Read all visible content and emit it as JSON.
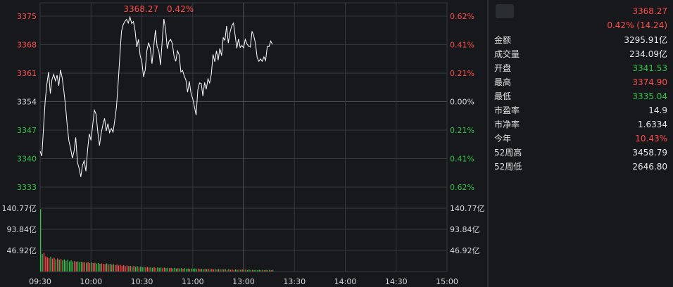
{
  "chart_data": {
    "type": "line",
    "title": "",
    "header": {
      "price": "3368.27",
      "change_pct": "0.42%"
    },
    "price_axis": {
      "ticks": [
        "3375",
        "3368",
        "3361",
        "3354",
        "3347",
        "3340",
        "3333"
      ],
      "pct_ticks": [
        "0.62%",
        "0.41%",
        "0.21%",
        "0.00%",
        "0.21%",
        "0.41%",
        "0.62%"
      ],
      "ylim": [
        3333,
        3375
      ],
      "base": 3354
    },
    "volume_axis": {
      "ticks": [
        "140.77亿",
        "93.84亿",
        "46.92亿"
      ],
      "ylim": [
        0,
        187.7
      ]
    },
    "x_ticks": [
      "09:30",
      "10:00",
      "10:30",
      "11:00",
      "13:00",
      "13:30",
      "14:00",
      "14:30",
      "15:00"
    ],
    "price_series": [
      [
        0,
        3341.8
      ],
      [
        1,
        3340.6
      ],
      [
        2,
        3347.5
      ],
      [
        3,
        3354.2
      ],
      [
        4,
        3358.3
      ],
      [
        5,
        3361.3
      ],
      [
        6,
        3356
      ],
      [
        7,
        3359.5
      ],
      [
        8,
        3360.7
      ],
      [
        9,
        3359.1
      ],
      [
        10,
        3360.5
      ],
      [
        11,
        3357.9
      ],
      [
        12,
        3361.8
      ],
      [
        13,
        3359.9
      ],
      [
        14,
        3356.7
      ],
      [
        15,
        3352.9
      ],
      [
        16,
        3348.1
      ],
      [
        17,
        3344.3
      ],
      [
        18,
        3342.5
      ],
      [
        19,
        3340.1
      ],
      [
        20,
        3341.8
      ],
      [
        21,
        3345.2
      ],
      [
        22,
        3339.1
      ],
      [
        23,
        3337.6
      ],
      [
        24,
        3335.5
      ],
      [
        25,
        3338.4
      ],
      [
        26,
        3339.5
      ],
      [
        27,
        3336.9
      ],
      [
        28,
        3342.1
      ],
      [
        29,
        3346.1
      ],
      [
        30,
        3344.5
      ],
      [
        31,
        3348.3
      ],
      [
        32,
        3351.9
      ],
      [
        33,
        3350.9
      ],
      [
        34,
        3346.6
      ],
      [
        35,
        3343.2
      ],
      [
        36,
        3346.2
      ],
      [
        37,
        3348.3
      ],
      [
        38,
        3349.9
      ],
      [
        39,
        3346.8
      ],
      [
        40,
        3348.6
      ],
      [
        41,
        3346.4
      ],
      [
        42,
        3347.4
      ],
      [
        43,
        3346.5
      ],
      [
        44,
        3349.4
      ],
      [
        45,
        3352.6
      ],
      [
        46,
        3358.5
      ],
      [
        47,
        3365.1
      ],
      [
        48,
        3371.3
      ],
      [
        49,
        3372.9
      ],
      [
        50,
        3373.7
      ],
      [
        51,
        3374.2
      ],
      [
        52,
        3373.3
      ],
      [
        53,
        3374.8
      ],
      [
        54,
        3373.2
      ],
      [
        55,
        3373.7
      ],
      [
        56,
        3371.4
      ],
      [
        57,
        3367.4
      ],
      [
        58,
        3369.3
      ],
      [
        59,
        3365.3
      ],
      [
        60,
        3363.8
      ],
      [
        61,
        3360.1
      ],
      [
        62,
        3361.8
      ],
      [
        63,
        3366.6
      ],
      [
        64,
        3368.5
      ],
      [
        65,
        3367.1
      ],
      [
        66,
        3363.3
      ],
      [
        67,
        3367.6
      ],
      [
        68,
        3371.6
      ],
      [
        69,
        3367.5
      ],
      [
        70,
        3366.5
      ],
      [
        71,
        3363
      ],
      [
        72,
        3368.9
      ],
      [
        73,
        3374.3
      ],
      [
        74,
        3371.8
      ],
      [
        75,
        3367
      ],
      [
        76,
        3368.8
      ],
      [
        77,
        3369.3
      ],
      [
        78,
        3368.3
      ],
      [
        79,
        3365.1
      ],
      [
        80,
        3363.9
      ],
      [
        81,
        3366.5
      ],
      [
        82,
        3365.5
      ],
      [
        83,
        3361.3
      ],
      [
        84,
        3361.7
      ],
      [
        85,
        3360.3
      ],
      [
        86,
        3359.3
      ],
      [
        87,
        3356.3
      ],
      [
        88,
        3359
      ],
      [
        89,
        3356.1
      ],
      [
        90,
        3354.7
      ],
      [
        91,
        3352.7
      ],
      [
        92,
        3350.7
      ],
      [
        93,
        3356.9
      ],
      [
        94,
        3358.6
      ],
      [
        95,
        3358.5
      ],
      [
        96,
        3355.4
      ],
      [
        97,
        3358.7
      ],
      [
        98,
        3357
      ],
      [
        99,
        3359.6
      ],
      [
        100,
        3358.6
      ],
      [
        101,
        3360.8
      ],
      [
        102,
        3365.6
      ],
      [
        103,
        3363.8
      ],
      [
        104,
        3366.5
      ],
      [
        105,
        3364.2
      ],
      [
        106,
        3367.1
      ],
      [
        107,
        3365.3
      ],
      [
        108,
        3369.7
      ],
      [
        109,
        3369.1
      ],
      [
        110,
        3372.6
      ],
      [
        111,
        3368.4
      ],
      [
        112,
        3371
      ],
      [
        113,
        3372.6
      ],
      [
        114,
        3373.3
      ],
      [
        115,
        3370.3
      ],
      [
        116,
        3367.1
      ],
      [
        117,
        3369.4
      ],
      [
        118,
        3367.3
      ],
      [
        119,
        3367.8
      ],
      [
        120,
        3367.2
      ],
      [
        121,
        3369.3
      ],
      [
        122,
        3368.2
      ],
      [
        123,
        3367.6
      ],
      [
        124,
        3367.4
      ],
      [
        125,
        3371.3
      ],
      [
        126,
        3370.2
      ],
      [
        127,
        3368.3
      ],
      [
        128,
        3364.8
      ],
      [
        129,
        3363.9
      ],
      [
        130,
        3364.5
      ],
      [
        131,
        3363.9
      ],
      [
        132,
        3365
      ],
      [
        133,
        3364.1
      ],
      [
        134,
        3367.6
      ],
      [
        135,
        3367.5
      ],
      [
        136,
        3368.9
      ],
      [
        137,
        3368.1
      ]
    ],
    "volume_values": [
      185,
      52,
      55,
      45,
      42,
      40,
      44,
      38,
      41,
      36,
      39,
      35,
      37,
      33,
      36,
      32,
      35,
      30,
      33,
      30,
      31,
      29,
      30,
      28,
      29,
      27,
      28,
      26,
      28,
      25,
      27,
      25,
      26,
      24,
      25,
      23,
      24,
      23,
      22,
      24,
      21,
      23,
      20,
      22,
      19,
      21,
      18,
      20,
      17,
      19,
      16,
      18,
      16,
      17,
      15,
      17,
      14,
      16,
      13,
      15,
      13,
      14,
      12,
      14,
      12,
      13,
      11,
      13,
      11,
      12,
      11,
      12,
      10,
      12,
      10,
      11,
      10,
      11,
      9,
      11,
      9,
      10,
      9,
      10,
      8,
      10,
      8,
      9,
      8,
      9,
      8,
      9,
      7,
      9,
      7,
      8,
      7,
      8,
      7,
      8,
      6,
      8,
      6,
      7,
      6,
      7,
      6,
      7,
      6,
      7,
      5,
      7,
      5,
      6,
      5,
      6,
      5,
      6,
      5,
      6,
      5,
      6,
      4,
      6,
      4,
      5,
      4,
      5,
      4,
      5,
      4,
      5,
      4,
      5,
      4,
      5,
      4,
      5
    ]
  },
  "panel": {
    "price": "3368.27",
    "change": "0.42% (14.24)",
    "rows": [
      {
        "label": "金额",
        "value": "3295.91亿",
        "color": "white"
      },
      {
        "label": "成交量",
        "value": "234.09亿",
        "color": "white"
      },
      {
        "label": "开盘",
        "value": "3341.53",
        "color": "green"
      },
      {
        "label": "最高",
        "value": "3374.90",
        "color": "red"
      },
      {
        "label": "最低",
        "value": "3335.04",
        "color": "green"
      },
      {
        "label": "市盈率",
        "value": "14.9",
        "color": "white"
      },
      {
        "label": "市净率",
        "value": "1.6334",
        "color": "white"
      },
      {
        "label": "今年",
        "value": "10.43%",
        "color": "red"
      },
      {
        "label": "52周高",
        "value": "3458.79",
        "color": "white"
      },
      {
        "label": "52周低",
        "value": "2646.80",
        "color": "white"
      }
    ],
    "colors": {
      "up": "#ff4d4d",
      "down": "#35c24a",
      "line": "#ffffff",
      "grid": "#34373c"
    }
  }
}
